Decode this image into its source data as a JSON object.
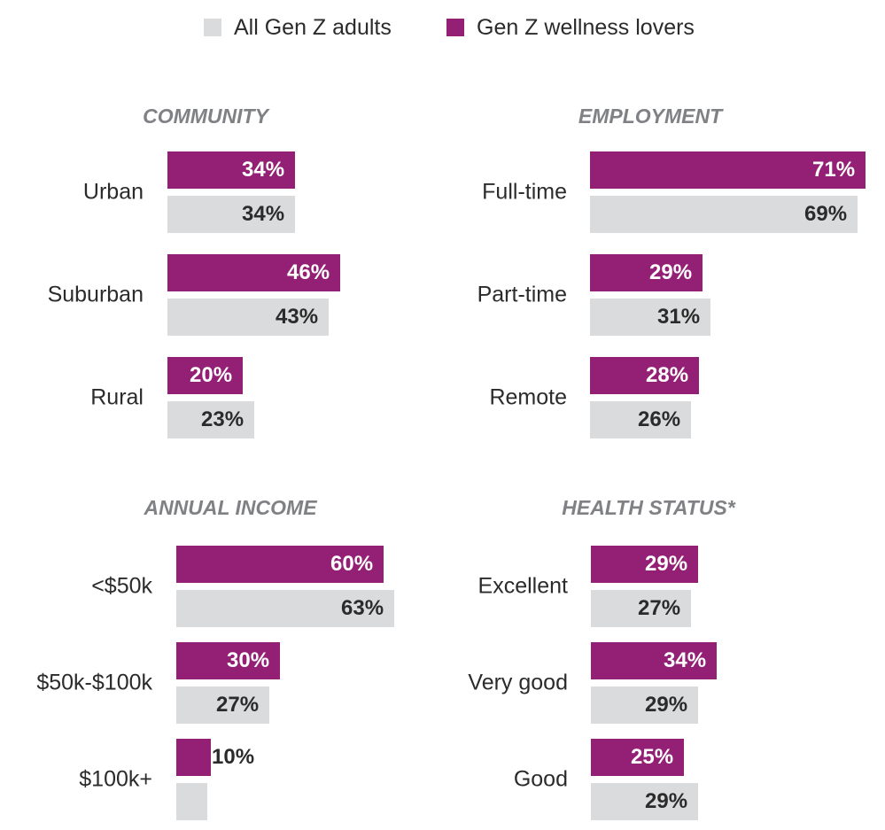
{
  "chart_data": [
    {
      "type": "bar",
      "title": "COMMUNITY",
      "categories": [
        "Urban",
        "Suburban",
        "Rural"
      ],
      "series": [
        {
          "name": "Gen Z wellness lovers",
          "values": [
            34,
            46,
            20
          ],
          "labels": [
            "34%",
            "46%",
            "20%"
          ]
        },
        {
          "name": "All Gen Z adults",
          "values": [
            34,
            43,
            23
          ],
          "labels": [
            "34%",
            "43%",
            "23%"
          ]
        }
      ]
    },
    {
      "type": "bar",
      "title": "EMPLOYMENT",
      "categories": [
        "Full-time",
        "Part-time",
        "Remote"
      ],
      "series": [
        {
          "name": "Gen Z wellness lovers",
          "values": [
            71,
            29,
            28
          ],
          "labels": [
            "71%",
            "29%",
            "28%"
          ]
        },
        {
          "name": "All Gen Z adults",
          "values": [
            69,
            31,
            26
          ],
          "labels": [
            "69%",
            "31%",
            "26%"
          ]
        }
      ]
    },
    {
      "type": "bar",
      "title": "ANNUAL INCOME",
      "categories": [
        "<$50k",
        "$50k-$100k",
        "$100k+"
      ],
      "series": [
        {
          "name": "Gen Z wellness lovers",
          "values": [
            60,
            30,
            10
          ],
          "labels": [
            "60%",
            "30%",
            "10%"
          ]
        },
        {
          "name": "All Gen Z adults",
          "values": [
            63,
            27,
            9
          ],
          "labels": [
            "63%",
            "27%",
            ""
          ]
        }
      ]
    },
    {
      "type": "bar",
      "title": "HEALTH STATUS*",
      "categories": [
        "Excellent",
        "Very good",
        "Good"
      ],
      "series": [
        {
          "name": "Gen Z wellness lovers",
          "values": [
            29,
            34,
            25
          ],
          "labels": [
            "29%",
            "34%",
            "25%"
          ]
        },
        {
          "name": "All Gen Z adults",
          "values": [
            27,
            29,
            29
          ],
          "labels": [
            "27%",
            "29%",
            "29%"
          ]
        }
      ]
    }
  ],
  "legend": [
    {
      "label": "All Gen Z adults",
      "color": "#dadbdc"
    },
    {
      "label": "Gen Z wellness lovers",
      "color": "#942076"
    }
  ],
  "colors": {
    "wellness": "#942076",
    "all": "#dadbdc",
    "label_on_purple": "#ffffff",
    "label_on_gray": "#2b2b2b"
  }
}
